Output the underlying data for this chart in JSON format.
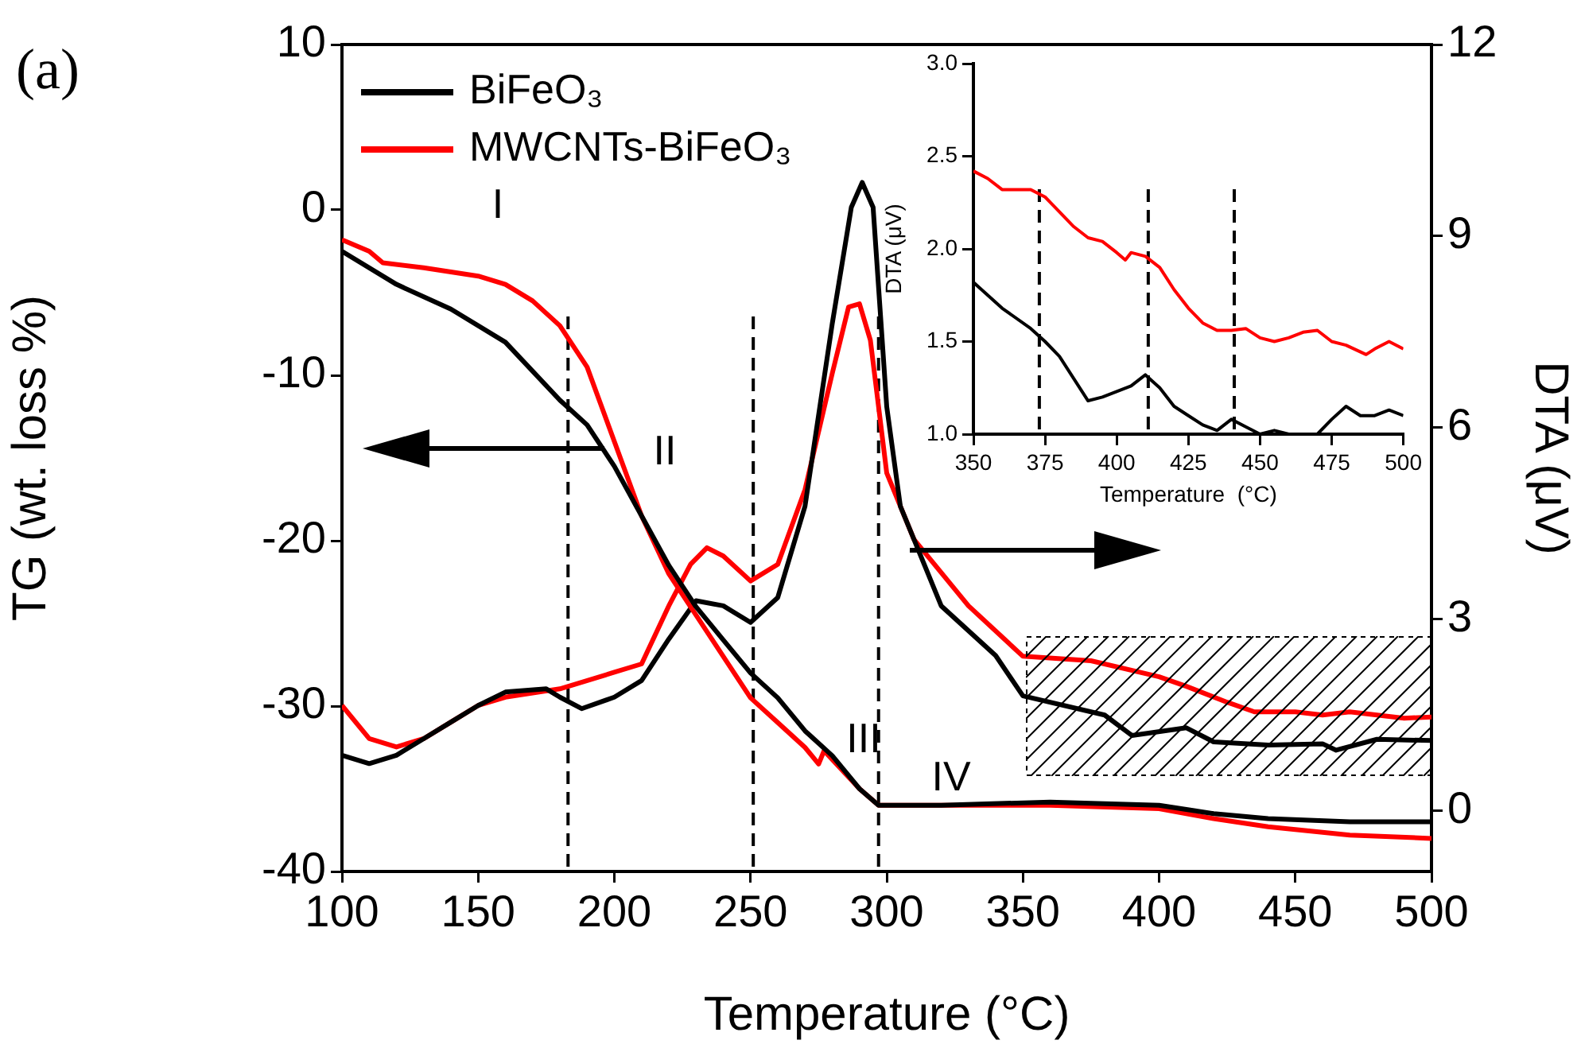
{
  "chart_data": [
    {
      "type": "line",
      "xlabel": "Temperature (°C)",
      "ylabel": "TG (wt. loss %)",
      "y2label": "DTA (μV)",
      "xlim": [
        100,
        500
      ],
      "xticks": [
        100,
        150,
        200,
        250,
        300,
        350,
        400,
        450,
        500
      ],
      "ylim": [
        -40,
        10
      ],
      "yticks": [
        -40,
        -30,
        -20,
        -10,
        0,
        10
      ],
      "y2lim": [
        -0.95,
        12
      ],
      "y2ticks": [
        0,
        3,
        6,
        9,
        12
      ],
      "legend": "top left",
      "line_style": "solid",
      "annotations": [
        "(a)",
        "I",
        "II",
        "III",
        "IV"
      ],
      "ref_lines": [
        {
          "axis": "x",
          "value": 183,
          "line_style": "dashed",
          "color": "#000000"
        },
        {
          "axis": "x",
          "value": 251,
          "line_style": "dashed",
          "color": "#000000"
        },
        {
          "axis": "x",
          "value": 297,
          "line_style": "dashed",
          "color": "#000000"
        }
      ],
      "series": [
        {
          "name": "BiFeO₃",
          "color": "#000000",
          "x": [
            100,
            120,
            140,
            160,
            180,
            190,
            200,
            210,
            220,
            230,
            240,
            250,
            260,
            270,
            280,
            290,
            297,
            320,
            360,
            400,
            420,
            440,
            470,
            500
          ],
          "values": [
            -2.5,
            -4.5,
            -6,
            -8,
            -11.5,
            -13,
            -15.5,
            -18.5,
            -21.5,
            -24,
            -26,
            -28,
            -29.5,
            -31.5,
            -33,
            -35,
            -36,
            -36,
            -35.8,
            -36,
            -36.5,
            -36.8,
            -37,
            -37
          ]
        },
        {
          "name": "MWCNTs-BiFeO₃",
          "color": "#ff0000",
          "x": [
            100,
            110,
            115,
            130,
            150,
            160,
            170,
            180,
            190,
            200,
            210,
            220,
            230,
            240,
            250,
            260,
            270,
            275,
            277,
            290,
            297,
            320,
            360,
            400,
            420,
            440,
            470,
            500
          ],
          "values": [
            -1.8,
            -2.5,
            -3.2,
            -3.5,
            -4,
            -4.5,
            -5.5,
            -7,
            -9.5,
            -14,
            -18.5,
            -22,
            -24.5,
            -27,
            -29.5,
            -31,
            -32.5,
            -33.5,
            -32.7,
            -35,
            -36,
            -36,
            -36,
            -36.2,
            -36.8,
            -37.3,
            -37.8,
            -38
          ]
        },
        {
          "color": "#000000",
          "axis": "y2",
          "x": [
            100,
            110,
            120,
            130,
            140,
            150,
            160,
            175,
            180,
            188,
            200,
            210,
            220,
            230,
            240,
            250,
            260,
            270,
            280,
            287,
            291,
            295,
            300,
            305,
            320,
            340,
            350,
            380,
            390,
            410,
            420,
            440,
            460,
            465,
            480,
            500
          ],
          "values": [
            0.87,
            0.74,
            0.87,
            1.13,
            1.39,
            1.65,
            1.86,
            1.91,
            1.78,
            1.6,
            1.78,
            2.04,
            2.69,
            3.29,
            3.21,
            2.95,
            3.34,
            4.77,
            7.63,
            9.45,
            9.84,
            9.45,
            6.33,
            4.77,
            3.21,
            2.43,
            1.8,
            1.5,
            1.18,
            1.3,
            1.08,
            1.03,
            1.05,
            0.95,
            1.12,
            1.1
          ]
        },
        {
          "color": "#ff0000",
          "axis": "y2",
          "x": [
            100,
            110,
            120,
            130,
            140,
            150,
            160,
            180,
            200,
            210,
            220,
            228,
            234,
            240,
            250,
            260,
            270,
            280,
            286,
            290,
            294,
            300,
            310,
            330,
            350,
            375,
            400,
            410,
            425,
            435,
            450,
            460,
            470,
            480,
            490,
            500
          ],
          "values": [
            1.65,
            1.13,
            1.0,
            1.13,
            1.39,
            1.65,
            1.78,
            1.91,
            2.17,
            2.3,
            3.21,
            3.86,
            4.12,
            3.99,
            3.6,
            3.86,
            5.03,
            6.85,
            7.89,
            7.94,
            7.37,
            5.29,
            4.25,
            3.21,
            2.42,
            2.35,
            2.1,
            1.95,
            1.7,
            1.55,
            1.55,
            1.5,
            1.55,
            1.5,
            1.45,
            1.47
          ]
        }
      ]
    },
    {
      "type": "line",
      "xlabel": "Temperature  (°C)",
      "ylabel": "DTA (μV)",
      "xlim": [
        350,
        500
      ],
      "xticks": [
        350,
        375,
        400,
        425,
        450,
        475,
        500
      ],
      "ylim": [
        1.0,
        3.0
      ],
      "yticks": [
        {
          "value": 1,
          "label": "1.0"
        },
        1.5,
        {
          "value": 2,
          "label": "2.0"
        },
        2.5,
        {
          "value": 3,
          "label": "3.0"
        }
      ],
      "line_style": "solid",
      "ref_lines": [
        {
          "axis": "x",
          "value": 373,
          "line_style": "dashed",
          "color": "#000000"
        },
        {
          "axis": "x",
          "value": 411,
          "line_style": "dashed",
          "color": "#000000"
        },
        {
          "axis": "x",
          "value": 441,
          "line_style": "dashed",
          "color": "#000000"
        }
      ],
      "series": [
        {
          "color": "#000000",
          "x": [
            350,
            360,
            370,
            375,
            380,
            385,
            390,
            395,
            400,
            405,
            410,
            415,
            420,
            425,
            430,
            435,
            440,
            445,
            450,
            455,
            460,
            465,
            470,
            475,
            480,
            485,
            490,
            495,
            500
          ],
          "values": [
            1.82,
            1.68,
            1.57,
            1.5,
            1.42,
            1.3,
            1.18,
            1.2,
            1.23,
            1.26,
            1.32,
            1.25,
            1.15,
            1.1,
            1.05,
            1.02,
            1.08,
            1.04,
            1.0,
            1.02,
            1.0,
            null,
            1.0,
            1.08,
            1.15,
            1.1,
            1.1,
            1.13,
            1.1
          ]
        },
        {
          "color": "#ff0000",
          "x": [
            350,
            355,
            360,
            370,
            375,
            380,
            385,
            390,
            395,
            400,
            403,
            405,
            410,
            415,
            420,
            425,
            430,
            435,
            440,
            445,
            450,
            455,
            460,
            465,
            470,
            475,
            480,
            487,
            490,
            495,
            500
          ],
          "values": [
            2.42,
            2.38,
            2.32,
            2.32,
            2.28,
            2.2,
            2.12,
            2.06,
            2.04,
            1.98,
            1.94,
            1.98,
            1.96,
            1.9,
            1.78,
            1.68,
            1.6,
            1.56,
            1.56,
            1.57,
            1.52,
            1.5,
            1.52,
            1.55,
            1.56,
            1.5,
            1.48,
            1.43,
            1.46,
            1.5,
            1.46
          ]
        }
      ]
    }
  ]
}
